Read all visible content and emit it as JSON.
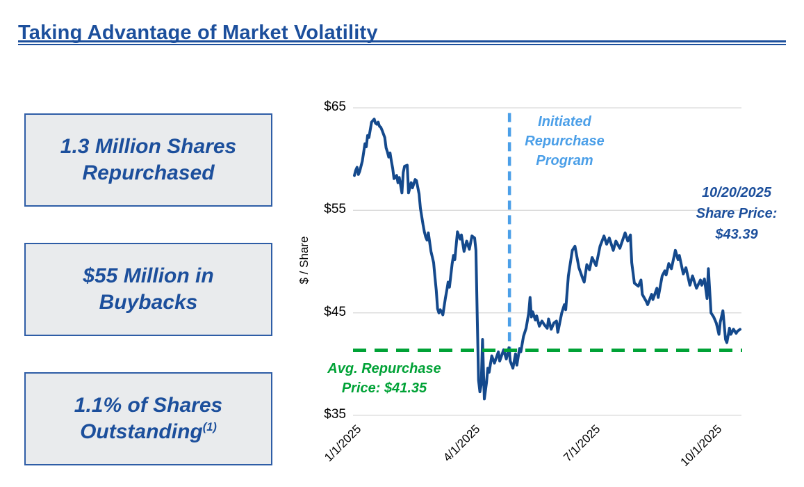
{
  "slide": {
    "title": "Taking Advantage of Market Volatility",
    "accent_color": "#1C4F9C"
  },
  "left_boxes": [
    {
      "line1": "1.3 Million Shares",
      "line2": "Repurchased"
    },
    {
      "line1": "$55 Million in",
      "line2": "Buybacks"
    },
    {
      "line1": "1.1% of Shares",
      "line2": "Outstanding",
      "superscript": "(1)"
    }
  ],
  "chart_data": {
    "type": "line",
    "title": "",
    "xlabel": "",
    "ylabel": "$ / Share",
    "ylim": [
      35,
      65
    ],
    "y_ticks": [
      "$65",
      "$55",
      "$45",
      "$35"
    ],
    "y_tick_values": [
      65,
      55,
      45,
      35
    ],
    "x_ticks": [
      {
        "label": "1/1/2025",
        "day": 0
      },
      {
        "label": "4/1/2025",
        "day": 90
      },
      {
        "label": "7/1/2025",
        "day": 181
      },
      {
        "label": "10/1/2025",
        "day": 273
      }
    ],
    "x_span_days": 292,
    "grid": true,
    "grid_color": "#D9D9D9",
    "line_color": "#14498C",
    "legend_position": "none",
    "series": [
      {
        "name": "Share Price ($/Share)",
        "points": [
          [
            0,
            58.4
          ],
          [
            1,
            58.9
          ],
          [
            2,
            59.2
          ],
          [
            3,
            58.5
          ],
          [
            4,
            58.8
          ],
          [
            6,
            59.8
          ],
          [
            8,
            61.5
          ],
          [
            9,
            61.2
          ],
          [
            10,
            62.3
          ],
          [
            11,
            62.1
          ],
          [
            13,
            63.6
          ],
          [
            15,
            63.9
          ],
          [
            16,
            63.5
          ],
          [
            17,
            63.4
          ],
          [
            18,
            63.6
          ],
          [
            19,
            63.2
          ],
          [
            20,
            63.1
          ],
          [
            21,
            62.8
          ],
          [
            23,
            62.1
          ],
          [
            24,
            61.1
          ],
          [
            25,
            60.7
          ],
          [
            26,
            60.2
          ],
          [
            27,
            60.6
          ],
          [
            28,
            59.8
          ],
          [
            29,
            59.1
          ],
          [
            30,
            58.1
          ],
          [
            32,
            58.4
          ],
          [
            33,
            57.7
          ],
          [
            34,
            58.2
          ],
          [
            36,
            56.7
          ],
          [
            37,
            58.7
          ],
          [
            38,
            59.3
          ],
          [
            40,
            59.4
          ],
          [
            40.8,
            57.4
          ],
          [
            41,
            56.7
          ],
          [
            43,
            57.7
          ],
          [
            44,
            57.2
          ],
          [
            46,
            58.0
          ],
          [
            47,
            57.9
          ],
          [
            49,
            56.6
          ],
          [
            50,
            55.2
          ],
          [
            52,
            53.6
          ],
          [
            53,
            52.9
          ],
          [
            54,
            52.4
          ],
          [
            55,
            52.1
          ],
          [
            56,
            52.8
          ],
          [
            58,
            51.0
          ],
          [
            60,
            49.9
          ],
          [
            61,
            48.5
          ],
          [
            62,
            47.2
          ],
          [
            63,
            45.4
          ],
          [
            64,
            45.0
          ],
          [
            65,
            45.3
          ],
          [
            66,
            45.1
          ],
          [
            67,
            44.8
          ],
          [
            69,
            46.5
          ],
          [
            70,
            47.2
          ],
          [
            71,
            48.0
          ],
          [
            72,
            47.5
          ],
          [
            74,
            49.8
          ],
          [
            75,
            50.6
          ],
          [
            76,
            50.2
          ],
          [
            78,
            52.9
          ],
          [
            80,
            52.2
          ],
          [
            81,
            52.6
          ],
          [
            83,
            51.0
          ],
          [
            85,
            52.0
          ],
          [
            87,
            51.2
          ],
          [
            89,
            52.5
          ],
          [
            91,
            52.3
          ],
          [
            92,
            51.1
          ],
          [
            93,
            44.5
          ],
          [
            94,
            38.4
          ],
          [
            95,
            37.3
          ],
          [
            96,
            38.0
          ],
          [
            97,
            42.4
          ],
          [
            97.7,
            39.4
          ],
          [
            98.4,
            36.6
          ],
          [
            100,
            38.2
          ],
          [
            101,
            39.6
          ],
          [
            102,
            39.2
          ],
          [
            104,
            40.8
          ],
          [
            106,
            40.1
          ],
          [
            109,
            41.2
          ],
          [
            110,
            40.3
          ],
          [
            113,
            41.4
          ],
          [
            115,
            40.5
          ],
          [
            117,
            41.6
          ],
          [
            118,
            40.3
          ],
          [
            120,
            39.6
          ],
          [
            122,
            41.0
          ],
          [
            123,
            39.9
          ],
          [
            125,
            41.5
          ],
          [
            126,
            41.2
          ],
          [
            128,
            42.7
          ],
          [
            130,
            43.5
          ],
          [
            132,
            45.0
          ],
          [
            133,
            46.5
          ],
          [
            134,
            44.6
          ],
          [
            135,
            45.1
          ],
          [
            137,
            44.3
          ],
          [
            138,
            44.7
          ],
          [
            140,
            43.7
          ],
          [
            142,
            44.2
          ],
          [
            144,
            43.8
          ],
          [
            146,
            43.5
          ],
          [
            147,
            44.4
          ],
          [
            149,
            43.4
          ],
          [
            151,
            44.0
          ],
          [
            153,
            44.2
          ],
          [
            154,
            43.1
          ],
          [
            157,
            45.0
          ],
          [
            159,
            45.8
          ],
          [
            160,
            45.3
          ],
          [
            162,
            48.6
          ],
          [
            165,
            51.1
          ],
          [
            167,
            51.5
          ],
          [
            170,
            49.4
          ],
          [
            173,
            48.3
          ],
          [
            174,
            48.0
          ],
          [
            176,
            49.7
          ],
          [
            178,
            49.2
          ],
          [
            180,
            50.4
          ],
          [
            183,
            49.6
          ],
          [
            186,
            51.5
          ],
          [
            189,
            52.5
          ],
          [
            191,
            51.7
          ],
          [
            193,
            52.3
          ],
          [
            196,
            51.1
          ],
          [
            198,
            52.0
          ],
          [
            201,
            51.3
          ],
          [
            205,
            52.8
          ],
          [
            207,
            52.0
          ],
          [
            209,
            52.6
          ],
          [
            210,
            49.9
          ],
          [
            212,
            47.9
          ],
          [
            215,
            47.6
          ],
          [
            217,
            48.2
          ],
          [
            218,
            46.8
          ],
          [
            221,
            46.1
          ],
          [
            222,
            45.8
          ],
          [
            225,
            46.8
          ],
          [
            226,
            46.3
          ],
          [
            229,
            47.4
          ],
          [
            230,
            46.5
          ],
          [
            233,
            48.6
          ],
          [
            235,
            49.1
          ],
          [
            236,
            48.7
          ],
          [
            238,
            49.8
          ],
          [
            240,
            49.3
          ],
          [
            243,
            51.1
          ],
          [
            245,
            50.2
          ],
          [
            246,
            50.6
          ],
          [
            249,
            48.8
          ],
          [
            251,
            49.4
          ],
          [
            254,
            47.7
          ],
          [
            256,
            48.6
          ],
          [
            259,
            47.4
          ],
          [
            262,
            48.2
          ],
          [
            263,
            47.7
          ],
          [
            265,
            48.3
          ],
          [
            267,
            46.4
          ],
          [
            268,
            49.3
          ],
          [
            270,
            45.0
          ],
          [
            272,
            44.6
          ],
          [
            274,
            44.0
          ],
          [
            276,
            42.9
          ],
          [
            277,
            44.1
          ],
          [
            279,
            45.2
          ],
          [
            281,
            42.4
          ],
          [
            282,
            42.1
          ],
          [
            284,
            43.5
          ],
          [
            285,
            42.9
          ],
          [
            287,
            43.4
          ],
          [
            289,
            43.0
          ],
          [
            290,
            43.2
          ],
          [
            292,
            43.39
          ]
        ]
      }
    ],
    "avg_repurchase_line": {
      "value": 41.35,
      "color": "#00A236",
      "style": "dashed"
    },
    "initiated_line": {
      "day": 117.4,
      "top_price": 64.5,
      "bottom_price": 41.0,
      "color": "#4B9FE8",
      "style": "dashed"
    },
    "annotations": {
      "initiated": {
        "lines": [
          "Initiated",
          "Repurchase",
          "Program"
        ],
        "color": "#4B9FE8"
      },
      "share_price": {
        "lines": [
          "10/20/2025",
          "Share Price:",
          "$43.39"
        ],
        "color": "#1C4F9C"
      },
      "avg_price": {
        "lines": [
          "Avg. Repurchase",
          "Price: $41.35"
        ],
        "color": "#00A236"
      }
    }
  }
}
